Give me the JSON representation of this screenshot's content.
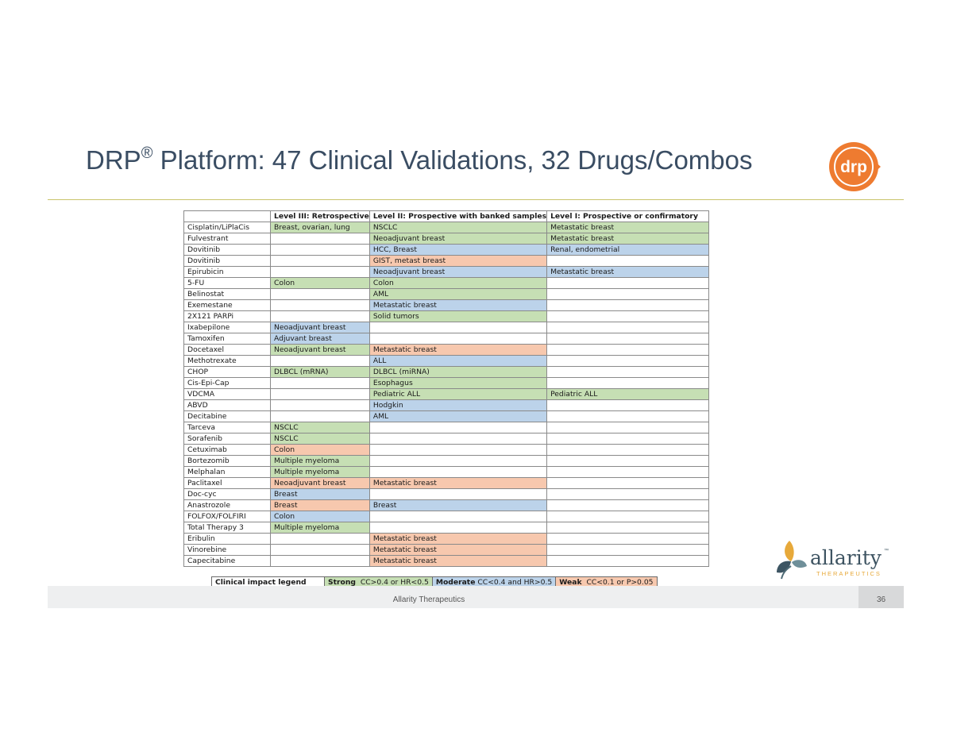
{
  "slide": {
    "title_prefix": "DRP",
    "title_mark": "®",
    "title_rest": " Platform: 47 Clinical Validations, 32 Drugs/Combos",
    "logo_text": "drp",
    "footer": "Allarity Therapeutics",
    "page_number": "36"
  },
  "colors": {
    "strong": "#c6dfb4",
    "moderate": "#bcd3ea",
    "weak": "#f7c8ae"
  },
  "table": {
    "headers": [
      "",
      "Level III: Retrospective",
      "Level II: Prospective with banked samples",
      "Level I: Prospective or confirmatory"
    ],
    "rows": [
      {
        "drug": "Cisplatin/LiPlaCis",
        "l3": "Breast, ovarian, lung",
        "l3c": "strong",
        "l2": "NSCLC",
        "l2c": "strong",
        "l1": "Metastatic breast",
        "l1c": "strong"
      },
      {
        "drug": "Fulvestrant",
        "l3": "",
        "l3c": "",
        "l2": "Neoadjuvant breast",
        "l2c": "strong",
        "l1": "Metastatic breast",
        "l1c": "strong"
      },
      {
        "drug": "Dovitinib",
        "l3": "",
        "l3c": "",
        "l2": "HCC, Breast",
        "l2c": "moderate",
        "l1": "Renal, endometrial",
        "l1c": "moderate"
      },
      {
        "drug": "Dovitinib",
        "l3": "",
        "l3c": "",
        "l2": "GIST, metast breast",
        "l2c": "weak",
        "l1": "",
        "l1c": ""
      },
      {
        "drug": "Epirubicin",
        "l3": "",
        "l3c": "",
        "l2": "Neoadjuvant breast",
        "l2c": "moderate",
        "l1": "Metastatic breast",
        "l1c": "moderate"
      },
      {
        "drug": "5-FU",
        "l3": "Colon",
        "l3c": "strong",
        "l2": "Colon",
        "l2c": "strong",
        "l1": "",
        "l1c": ""
      },
      {
        "drug": "Belinostat",
        "l3": "",
        "l3c": "",
        "l2": "AML",
        "l2c": "strong",
        "l1": "",
        "l1c": ""
      },
      {
        "drug": "Exemestane",
        "l3": "",
        "l3c": "",
        "l2": "Metastatic breast",
        "l2c": "moderate",
        "l1": "",
        "l1c": ""
      },
      {
        "drug": "2X121 PARPi",
        "l3": "",
        "l3c": "",
        "l2": "Solid tumors",
        "l2c": "strong",
        "l1": "",
        "l1c": ""
      },
      {
        "drug": "Ixabepilone",
        "l3": "Neoadjuvant breast",
        "l3c": "moderate",
        "l2": "",
        "l2c": "",
        "l1": "",
        "l1c": ""
      },
      {
        "drug": "Tamoxifen",
        "l3": "Adjuvant breast",
        "l3c": "moderate",
        "l2": "",
        "l2c": "",
        "l1": "",
        "l1c": ""
      },
      {
        "drug": "Docetaxel",
        "l3": "Neoadjuvant breast",
        "l3c": "strong",
        "l2": "Metastatic breast",
        "l2c": "weak",
        "l1": "",
        "l1c": ""
      },
      {
        "drug": "Methotrexate",
        "l3": "",
        "l3c": "",
        "l2": "ALL",
        "l2c": "moderate",
        "l1": "",
        "l1c": ""
      },
      {
        "drug": "CHOP",
        "l3": "DLBCL (mRNA)",
        "l3c": "strong",
        "l2": "DLBCL (miRNA)",
        "l2c": "strong",
        "l1": "",
        "l1c": ""
      },
      {
        "drug": "Cis-Epi-Cap",
        "l3": "",
        "l3c": "",
        "l2": "Esophagus",
        "l2c": "strong",
        "l1": "",
        "l1c": ""
      },
      {
        "drug": "VDCMA",
        "l3": "",
        "l3c": "",
        "l2": "Pediatric ALL",
        "l2c": "strong",
        "l1": "Pediatric ALL",
        "l1c": "strong"
      },
      {
        "drug": "ABVD",
        "l3": "",
        "l3c": "",
        "l2": "Hodgkin",
        "l2c": "moderate",
        "l1": "",
        "l1c": ""
      },
      {
        "drug": "Decitabine",
        "l3": "",
        "l3c": "",
        "l2": "AML",
        "l2c": "moderate",
        "l1": "",
        "l1c": ""
      },
      {
        "drug": "Tarceva",
        "l3": "NSCLC",
        "l3c": "strong",
        "l2": "",
        "l2c": "",
        "l1": "",
        "l1c": ""
      },
      {
        "drug": "Sorafenib",
        "l3": "NSCLC",
        "l3c": "strong",
        "l2": "",
        "l2c": "",
        "l1": "",
        "l1c": ""
      },
      {
        "drug": "Cetuximab",
        "l3": "Colon",
        "l3c": "weak",
        "l2": "",
        "l2c": "",
        "l1": "",
        "l1c": ""
      },
      {
        "drug": "Bortezomib",
        "l3": "Multiple myeloma",
        "l3c": "strong",
        "l2": "",
        "l2c": "",
        "l1": "",
        "l1c": ""
      },
      {
        "drug": "Melphalan",
        "l3": "Multiple myeloma",
        "l3c": "strong",
        "l2": "",
        "l2c": "",
        "l1": "",
        "l1c": ""
      },
      {
        "drug": "Paclitaxel",
        "l3": "Neoadjuvant breast",
        "l3c": "weak",
        "l2": "Metastatic breast",
        "l2c": "weak",
        "l1": "",
        "l1c": ""
      },
      {
        "drug": "Doc-cyc",
        "l3": "Breast",
        "l3c": "moderate",
        "l2": "",
        "l2c": "",
        "l1": "",
        "l1c": ""
      },
      {
        "drug": "Anastrozole",
        "l3": "Breast",
        "l3c": "weak",
        "l2": "Breast",
        "l2c": "moderate",
        "l1": "",
        "l1c": ""
      },
      {
        "drug": "FOLFOX/FOLFIRI",
        "l3": "Colon",
        "l3c": "moderate",
        "l2": "",
        "l2c": "",
        "l1": "",
        "l1c": ""
      },
      {
        "drug": "Total Therapy 3",
        "l3": "Multiple myeloma",
        "l3c": "strong",
        "l2": "",
        "l2c": "",
        "l1": "",
        "l1c": ""
      },
      {
        "drug": "Eribulin",
        "l3": "",
        "l3c": "",
        "l2": "Metastatic breast",
        "l2c": "weak",
        "l1": "",
        "l1c": ""
      },
      {
        "drug": "Vinorebine",
        "l3": "",
        "l3c": "",
        "l2": "Metastatic breast",
        "l2c": "weak",
        "l1": "",
        "l1c": ""
      },
      {
        "drug": "Capecitabine",
        "l3": "",
        "l3c": "",
        "l2": "Metastatic breast",
        "l2c": "weak",
        "l1": "",
        "l1c": ""
      }
    ]
  },
  "legend": {
    "title": "Clinical impact legend",
    "strong_label": "Strong",
    "strong_rule": "CC>0.4 or HR<0.5",
    "moderate_label": "Moderate",
    "moderate_rule": "CC<0.4 and HR>0.5",
    "weak_label": "Weak",
    "weak_rule": "CC<0.1 or P>0.05"
  },
  "allarity_logo": {
    "name": "allarity",
    "tm": "™",
    "tagline": "THERAPEUTICS"
  }
}
